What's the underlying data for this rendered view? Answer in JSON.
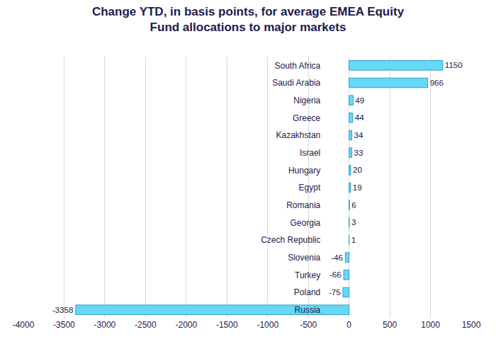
{
  "chart_data": {
    "type": "bar",
    "orientation": "horizontal",
    "title": "Change YTD, in basis points, for average EMEA Equity\nFund allocations to major markets",
    "categories": [
      "South Africa",
      "Saudi Arabia",
      "Nigeria",
      "Greece",
      "Kazakhstan",
      "Israel",
      "Hungary",
      "Egypt",
      "Romania",
      "Georgia",
      "Czech Republic",
      "Slovenia",
      "Turkey",
      "Poland",
      "Russia"
    ],
    "values": [
      1150,
      966,
      49,
      44,
      34,
      33,
      20,
      19,
      6,
      3,
      1,
      -46,
      -66,
      -75,
      -3358
    ],
    "color": "#67d8f5",
    "xlim": [
      -4000,
      1500
    ],
    "xticks": [
      -4000,
      -3500,
      -3000,
      -2500,
      -2000,
      -1500,
      -1000,
      -500,
      0,
      500,
      1000,
      1500
    ],
    "grid": true,
    "data_labels": true
  }
}
